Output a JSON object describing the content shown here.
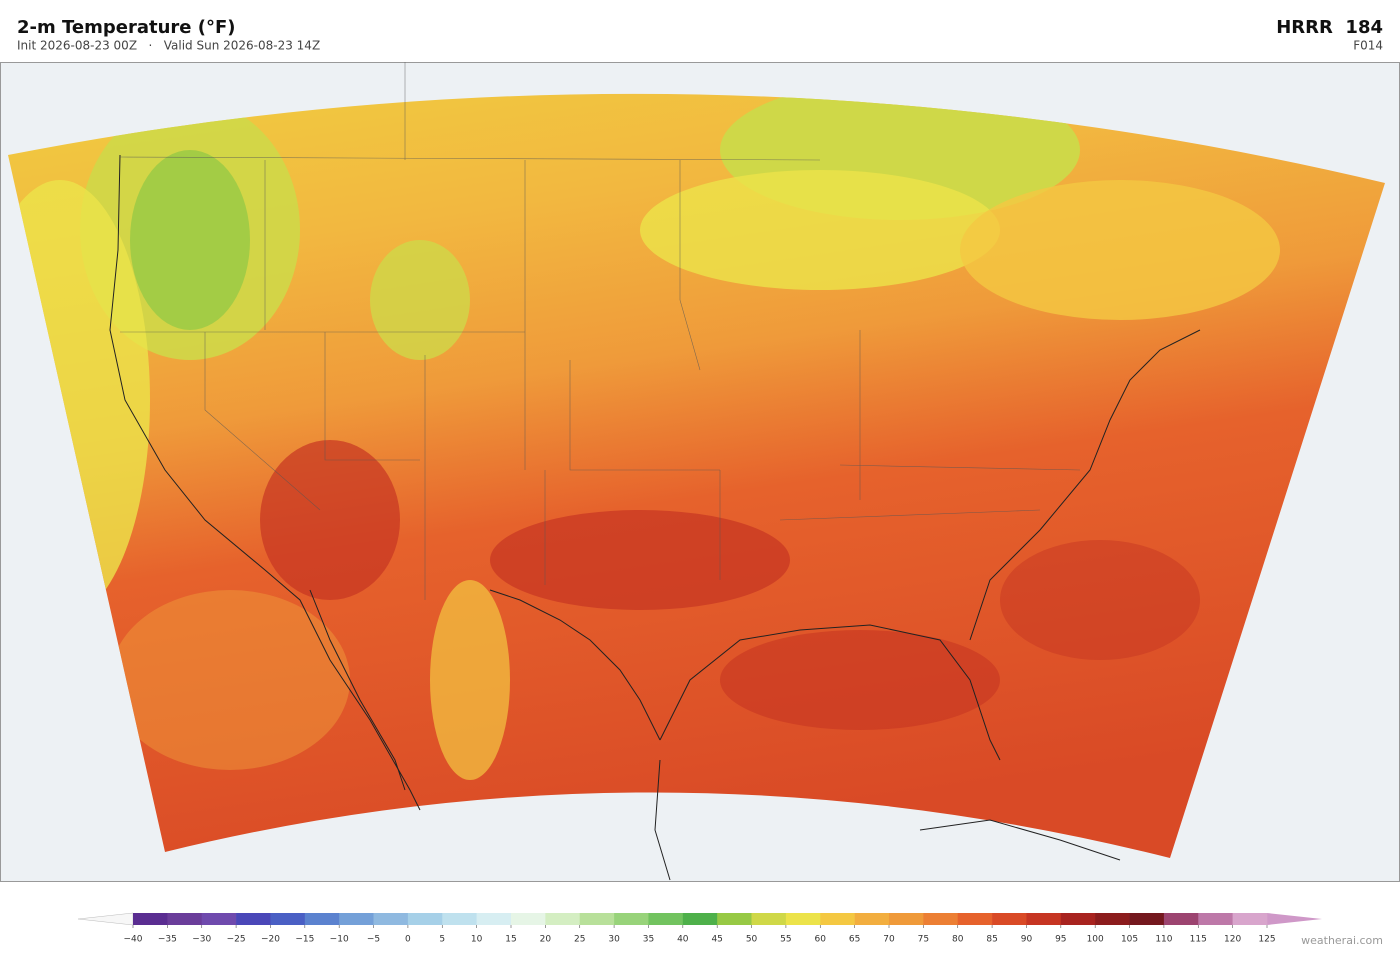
{
  "header": {
    "title": "2-m Temperature  (°F)",
    "subtitle": "Init 2026-08-23 00Z   ·   Valid Sun 2026-08-23 14Z",
    "model": "HRRR  184",
    "forecast_hour": "F014"
  },
  "colorbar": {
    "ticks": [
      {
        "value": -40,
        "label": "−40"
      },
      {
        "value": -35,
        "label": "−35"
      },
      {
        "value": -30,
        "label": "−30"
      },
      {
        "value": -25,
        "label": "−25"
      },
      {
        "value": -20,
        "label": "−20"
      },
      {
        "value": -15,
        "label": "−15"
      },
      {
        "value": -10,
        "label": "−10"
      },
      {
        "value": -5,
        "label": "−5"
      },
      0,
      5,
      10,
      15,
      20,
      25,
      30,
      35,
      40,
      45,
      50,
      55,
      60,
      65,
      70,
      75,
      80,
      85,
      90,
      95,
      100,
      105,
      110,
      115,
      120,
      125
    ],
    "colors": [
      "#5a2d91",
      "#6a3d9a",
      "#6f4aad",
      "#4a47b8",
      "#4a5fc4",
      "#5b82cf",
      "#74a0d8",
      "#8fb9e0",
      "#a6d0e8",
      "#bfe1ee",
      "#d7eef2",
      "#e6f5e6",
      "#d4eec2",
      "#b8e09a",
      "#98d37a",
      "#72c35f",
      "#4eb04a",
      "#97c945",
      "#cfd848",
      "#ece34a",
      "#f4c842",
      "#f2ae3f",
      "#ef9a3a",
      "#ec7f34",
      "#e6622c",
      "#d94a26",
      "#c63522",
      "#a8231f",
      "#8c1c1d",
      "#74181e",
      "#9c4470",
      "#bd78a8",
      "#d8a5cc"
    ],
    "under_color": "#f7f7f7",
    "over_color": "#cf98c8"
  },
  "watermark": "weatherai.com"
}
